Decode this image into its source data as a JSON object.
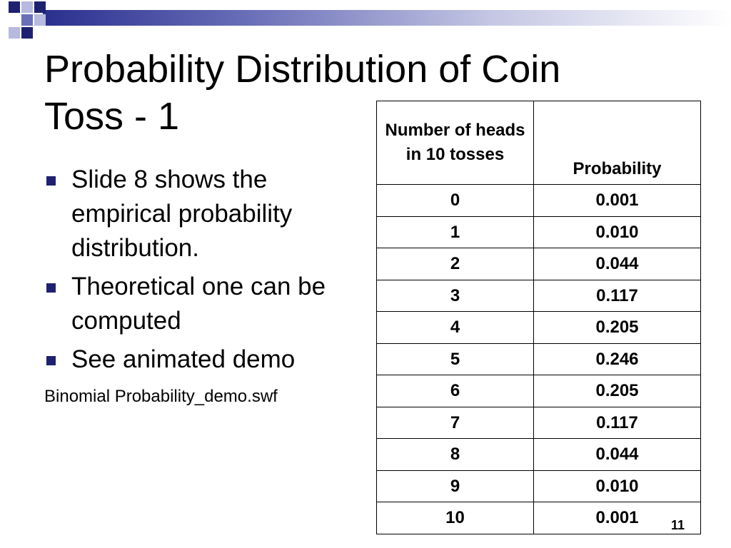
{
  "title": "Probability Distribution of Coin Toss - 1",
  "bullets": [
    "Slide 8 shows the empirical probability distribution.",
    "Theoretical one can be computed",
    "See animated demo"
  ],
  "link_text": "Binomial Probability_demo.swf",
  "table": {
    "headers": [
      "Number of heads in 10 tosses",
      "Probability"
    ],
    "rows": [
      [
        "0",
        "0.001"
      ],
      [
        "1",
        "0.010"
      ],
      [
        "2",
        "0.044"
      ],
      [
        "3",
        "0.117"
      ],
      [
        "4",
        "0.205"
      ],
      [
        "5",
        "0.246"
      ],
      [
        "6",
        "0.205"
      ],
      [
        "7",
        "0.117"
      ],
      [
        "8",
        "0.044"
      ],
      [
        "9",
        "0.010"
      ],
      [
        "10",
        "0.001"
      ]
    ]
  },
  "page_number": "11",
  "colors": {
    "accent": "#1e2170",
    "bar_start": "#2a2f8f"
  }
}
